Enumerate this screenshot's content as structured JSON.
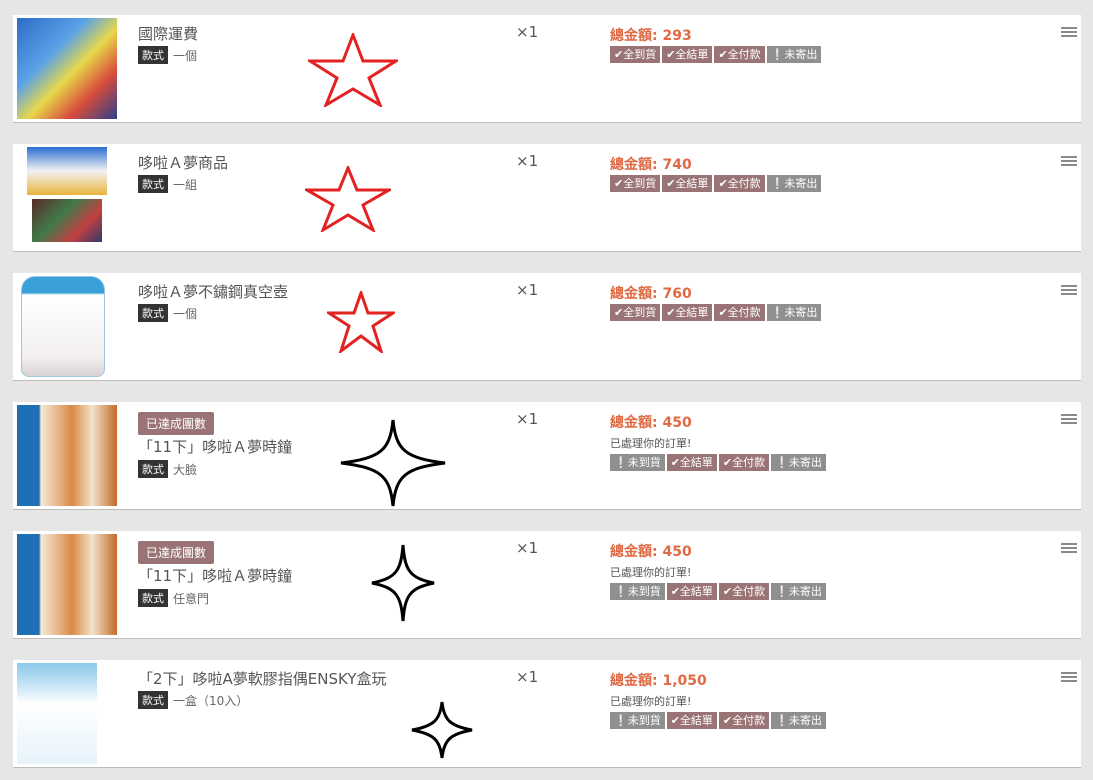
{
  "items": [
    {
      "title": "國際運費",
      "spec_label": "款式",
      "spec_value": "一個",
      "qty": "×1",
      "total": "總金額: 293",
      "statuses": [
        "✔全到貨",
        "✔全結單",
        "✔全付款",
        "❕未寄出"
      ]
    },
    {
      "title": "哆啦Ａ夢商品",
      "spec_label": "款式",
      "spec_value": "一組",
      "qty": "×1",
      "total": "總金額: 740",
      "statuses": [
        "✔全到貨",
        "✔全結單",
        "✔全付款",
        "❕未寄出"
      ]
    },
    {
      "title": "哆啦Ａ夢不鏽鋼真空壺",
      "spec_label": "款式",
      "spec_value": "一個",
      "qty": "×1",
      "total": "總金額: 760",
      "statuses": [
        "✔全到貨",
        "✔全結單",
        "✔全付款",
        "❕未寄出"
      ]
    },
    {
      "group_badge": "已達成團數",
      "title": "「11下」哆啦Ａ夢時鐘",
      "spec_label": "款式",
      "spec_value": "大臉",
      "qty": "×1",
      "total": "總金額: 450",
      "note": "已處理你的訂單!",
      "statuses": [
        "❕未到貨",
        "✔全結單",
        "✔全付款",
        "❕未寄出"
      ]
    },
    {
      "group_badge": "已達成團數",
      "title": "「11下」哆啦Ａ夢時鐘",
      "spec_label": "款式",
      "spec_value": "任意門",
      "qty": "×1",
      "total": "總金額: 450",
      "note": "已處理你的訂單!",
      "statuses": [
        "❕未到貨",
        "✔全結單",
        "✔全付款",
        "❕未寄出"
      ]
    },
    {
      "title": "「2下」哆啦A夢軟膠指偶ENSKY盒玩",
      "spec_label": "款式",
      "spec_value": "一盒（10入）",
      "qty": "×1",
      "total": "總金額: 1,050",
      "note": "已處理你的訂單!",
      "statuses": [
        "❕未到貨",
        "✔全結單",
        "✔全付款",
        "❕未寄出"
      ]
    }
  ],
  "colors": {
    "total": "#e06a43",
    "badge_done": "#9a7474",
    "badge_pending": "#8f8f8f",
    "star_red": "#e32222",
    "star_black": "#000000"
  },
  "icons": [
    "list-menu-icon",
    "product-thumbnail",
    "red-star-mark",
    "black-sparkle-mark"
  ]
}
